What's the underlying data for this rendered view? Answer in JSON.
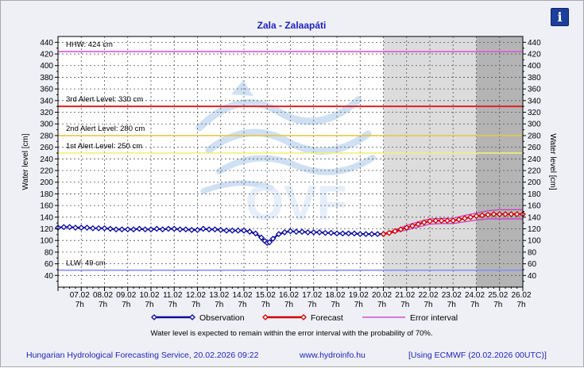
{
  "icons": {
    "info": "info-icon"
  },
  "footer": {
    "service": "Hungarian Hydrological Forecasting Service, 20.02.2026 09:22",
    "website": "www.hydroinfo.hu",
    "model": "[Using ECMWF (20.02.2026  00UTC)]"
  },
  "note": "Water level is expected to remain within the error interval with the probability of 70%.",
  "watermark": "OVF",
  "colors": {
    "observation": "#0a0aa0",
    "forecast": "#d00000",
    "error_interval": "#cc33cc",
    "hhw": "#dd55dd",
    "alert3": "#dd2222",
    "alert2": "#e6c84a",
    "alert1": "#f2f07a",
    "llw": "#8a8aff",
    "forecast_shade_light": "#dcdcdc",
    "forecast_shade_dark": "#b4b4b4"
  },
  "chart_data": {
    "type": "line",
    "title": "Zala - Zalaapáti",
    "ylabel": "Water level [cm]",
    "ylabel_right": "Water level [cm]",
    "ylim": [
      20,
      450
    ],
    "yticks": [
      40,
      60,
      80,
      100,
      120,
      140,
      160,
      180,
      200,
      220,
      240,
      260,
      280,
      300,
      320,
      340,
      360,
      380,
      400,
      420,
      440
    ],
    "xlim": [
      0,
      20
    ],
    "xticks": [
      {
        "x": 1,
        "date": "07.02",
        "hour": "7h"
      },
      {
        "x": 2,
        "date": "08.02",
        "hour": "7h"
      },
      {
        "x": 3,
        "date": "09.02",
        "hour": "7h"
      },
      {
        "x": 4,
        "date": "10.02",
        "hour": "7h"
      },
      {
        "x": 5,
        "date": "11.02",
        "hour": "7h"
      },
      {
        "x": 6,
        "date": "12.02",
        "hour": "7h"
      },
      {
        "x": 7,
        "date": "13.02",
        "hour": "7h"
      },
      {
        "x": 8,
        "date": "14.02",
        "hour": "7h"
      },
      {
        "x": 9,
        "date": "15.02",
        "hour": "7h"
      },
      {
        "x": 10,
        "date": "16.02",
        "hour": "7h"
      },
      {
        "x": 11,
        "date": "17.02",
        "hour": "7h"
      },
      {
        "x": 12,
        "date": "18.02",
        "hour": "7h"
      },
      {
        "x": 13,
        "date": "19.02",
        "hour": "7h"
      },
      {
        "x": 14,
        "date": "20.02",
        "hour": "7h"
      },
      {
        "x": 15,
        "date": "21.02",
        "hour": "7h"
      },
      {
        "x": 16,
        "date": "22.02",
        "hour": "7h"
      },
      {
        "x": 17,
        "date": "23.02",
        "hour": "7h"
      },
      {
        "x": 18,
        "date": "24.02",
        "hour": "7h"
      },
      {
        "x": 19,
        "date": "25.02",
        "hour": "7h"
      },
      {
        "x": 20,
        "date": "26.02",
        "hour": "7h"
      }
    ],
    "grid": true,
    "levels": [
      {
        "label": "HHW: 424 cm",
        "value": 424,
        "color_key": "hhw"
      },
      {
        "label": "3rd Alert Level: 330 cm",
        "value": 330,
        "color_key": "alert3"
      },
      {
        "label": "2nd Alert Level: 280 cm",
        "value": 280,
        "color_key": "alert2"
      },
      {
        "label": "1st Alert Level: 250 cm",
        "value": 250,
        "color_key": "alert1"
      },
      {
        "label": "LLW: 49 cm",
        "value": 49,
        "color_key": "llw"
      }
    ],
    "forecast_regions": [
      {
        "from": 14,
        "to": 18,
        "shade": "light"
      },
      {
        "from": 18,
        "to": 20,
        "shade": "dark"
      }
    ],
    "legend": {
      "position": "bottom",
      "entries": [
        {
          "name": "Observation",
          "color_key": "observation",
          "marker": "diamond"
        },
        {
          "name": "Forecast",
          "color_key": "forecast",
          "marker": "diamond"
        },
        {
          "name": "Error interval",
          "color_key": "error_interval",
          "marker": "none"
        }
      ]
    },
    "series": [
      {
        "name": "Observation",
        "x": [
          0,
          0.25,
          0.5,
          0.75,
          1,
          1.25,
          1.5,
          1.75,
          2,
          2.25,
          2.5,
          2.75,
          3,
          3.25,
          3.5,
          3.75,
          4,
          4.25,
          4.5,
          4.75,
          5,
          5.25,
          5.5,
          5.75,
          6,
          6.25,
          6.5,
          6.75,
          7,
          7.25,
          7.5,
          7.75,
          8,
          8.25,
          8.5,
          8.75,
          8.9,
          9,
          9.1,
          9.25,
          9.5,
          9.75,
          10,
          10.25,
          10.5,
          10.75,
          11,
          11.25,
          11.5,
          11.75,
          12,
          12.25,
          12.5,
          12.75,
          13,
          13.25,
          13.5,
          13.75,
          14
        ],
        "values": [
          122,
          123,
          123,
          122,
          122,
          122,
          121,
          121,
          121,
          120,
          119,
          119,
          119,
          119,
          120,
          119,
          119,
          120,
          119,
          120,
          120,
          119,
          119,
          118,
          118,
          120,
          119,
          119,
          118,
          117,
          117,
          117,
          117,
          115,
          112,
          105,
          99,
          96,
          97,
          103,
          111,
          114,
          116,
          115,
          115,
          114,
          114,
          114,
          113,
          113,
          112,
          112,
          112,
          112,
          111,
          111,
          111,
          111,
          111
        ]
      },
      {
        "name": "Forecast",
        "x": [
          14,
          14.25,
          14.5,
          14.75,
          15,
          15.25,
          15.5,
          15.75,
          16,
          16.25,
          16.5,
          16.75,
          17,
          17.25,
          17.5,
          17.75,
          18,
          18.25,
          18.5,
          18.75,
          19,
          19.25,
          19.5,
          19.75,
          20
        ],
        "values": [
          111,
          113,
          116,
          119,
          122,
          125,
          128,
          131,
          133,
          134,
          134,
          134,
          134,
          136,
          138,
          140,
          142,
          143,
          144,
          145,
          145,
          145,
          145,
          145,
          145
        ]
      },
      {
        "name": "Error interval upper",
        "x": [
          14,
          14.5,
          15,
          15.5,
          16,
          16.5,
          17,
          17.5,
          18,
          18.5,
          19,
          19.5,
          20
        ],
        "values": [
          112,
          118,
          126,
          132,
          137,
          138,
          138,
          143,
          147,
          151,
          153,
          153,
          153
        ]
      },
      {
        "name": "Error interval lower",
        "x": [
          14,
          14.5,
          15,
          15.5,
          16,
          16.5,
          17,
          17.5,
          18,
          18.5,
          19,
          19.5,
          20
        ],
        "values": [
          110,
          114,
          118,
          123,
          128,
          129,
          129,
          132,
          135,
          137,
          137,
          137,
          137
        ]
      }
    ]
  }
}
